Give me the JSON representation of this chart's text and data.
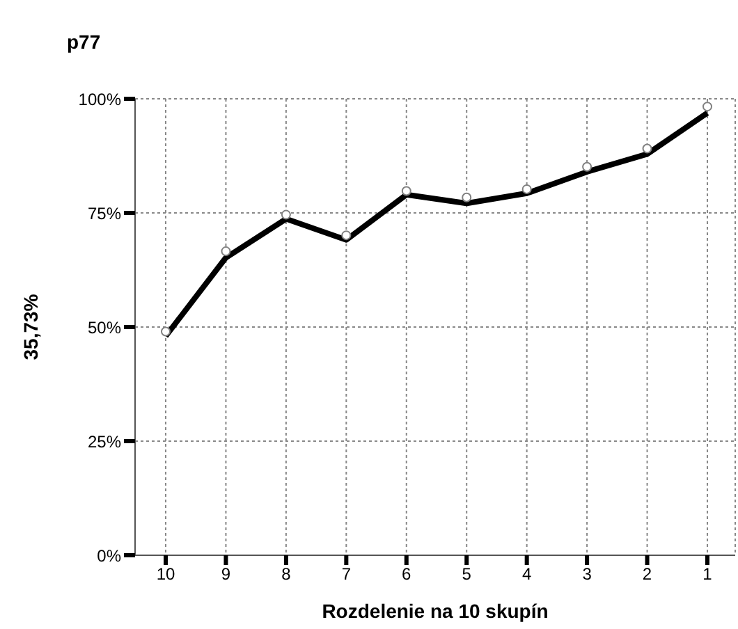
{
  "chart_data": {
    "type": "line",
    "title": "p77",
    "xlabel": "Rozdelenie na 10 skupín",
    "ylabel": "35,73%",
    "categories": [
      "10",
      "9",
      "8",
      "7",
      "6",
      "5",
      "4",
      "3",
      "2",
      "1"
    ],
    "series": [
      {
        "type": "line",
        "color": "#000000",
        "marker": "none",
        "values": [
          48.0,
          65.2,
          73.7,
          69.1,
          79.0,
          77.1,
          79.3,
          84.0,
          87.9,
          96.9
        ]
      },
      {
        "type": "scatter",
        "color": "#808080",
        "marker": "circle",
        "values": [
          49.0,
          66.6,
          74.6,
          70.1,
          79.8,
          78.4,
          80.2,
          85.1,
          89.1,
          98.3
        ]
      }
    ],
    "ylim": [
      0,
      100
    ],
    "yticks": [
      {
        "value": 0,
        "label": "0%"
      },
      {
        "value": 25,
        "label": "25%"
      },
      {
        "value": 50,
        "label": "50%"
      },
      {
        "value": 75,
        "label": "75%"
      },
      {
        "value": 100,
        "label": "100%"
      }
    ],
    "grid": true,
    "legend": false
  }
}
